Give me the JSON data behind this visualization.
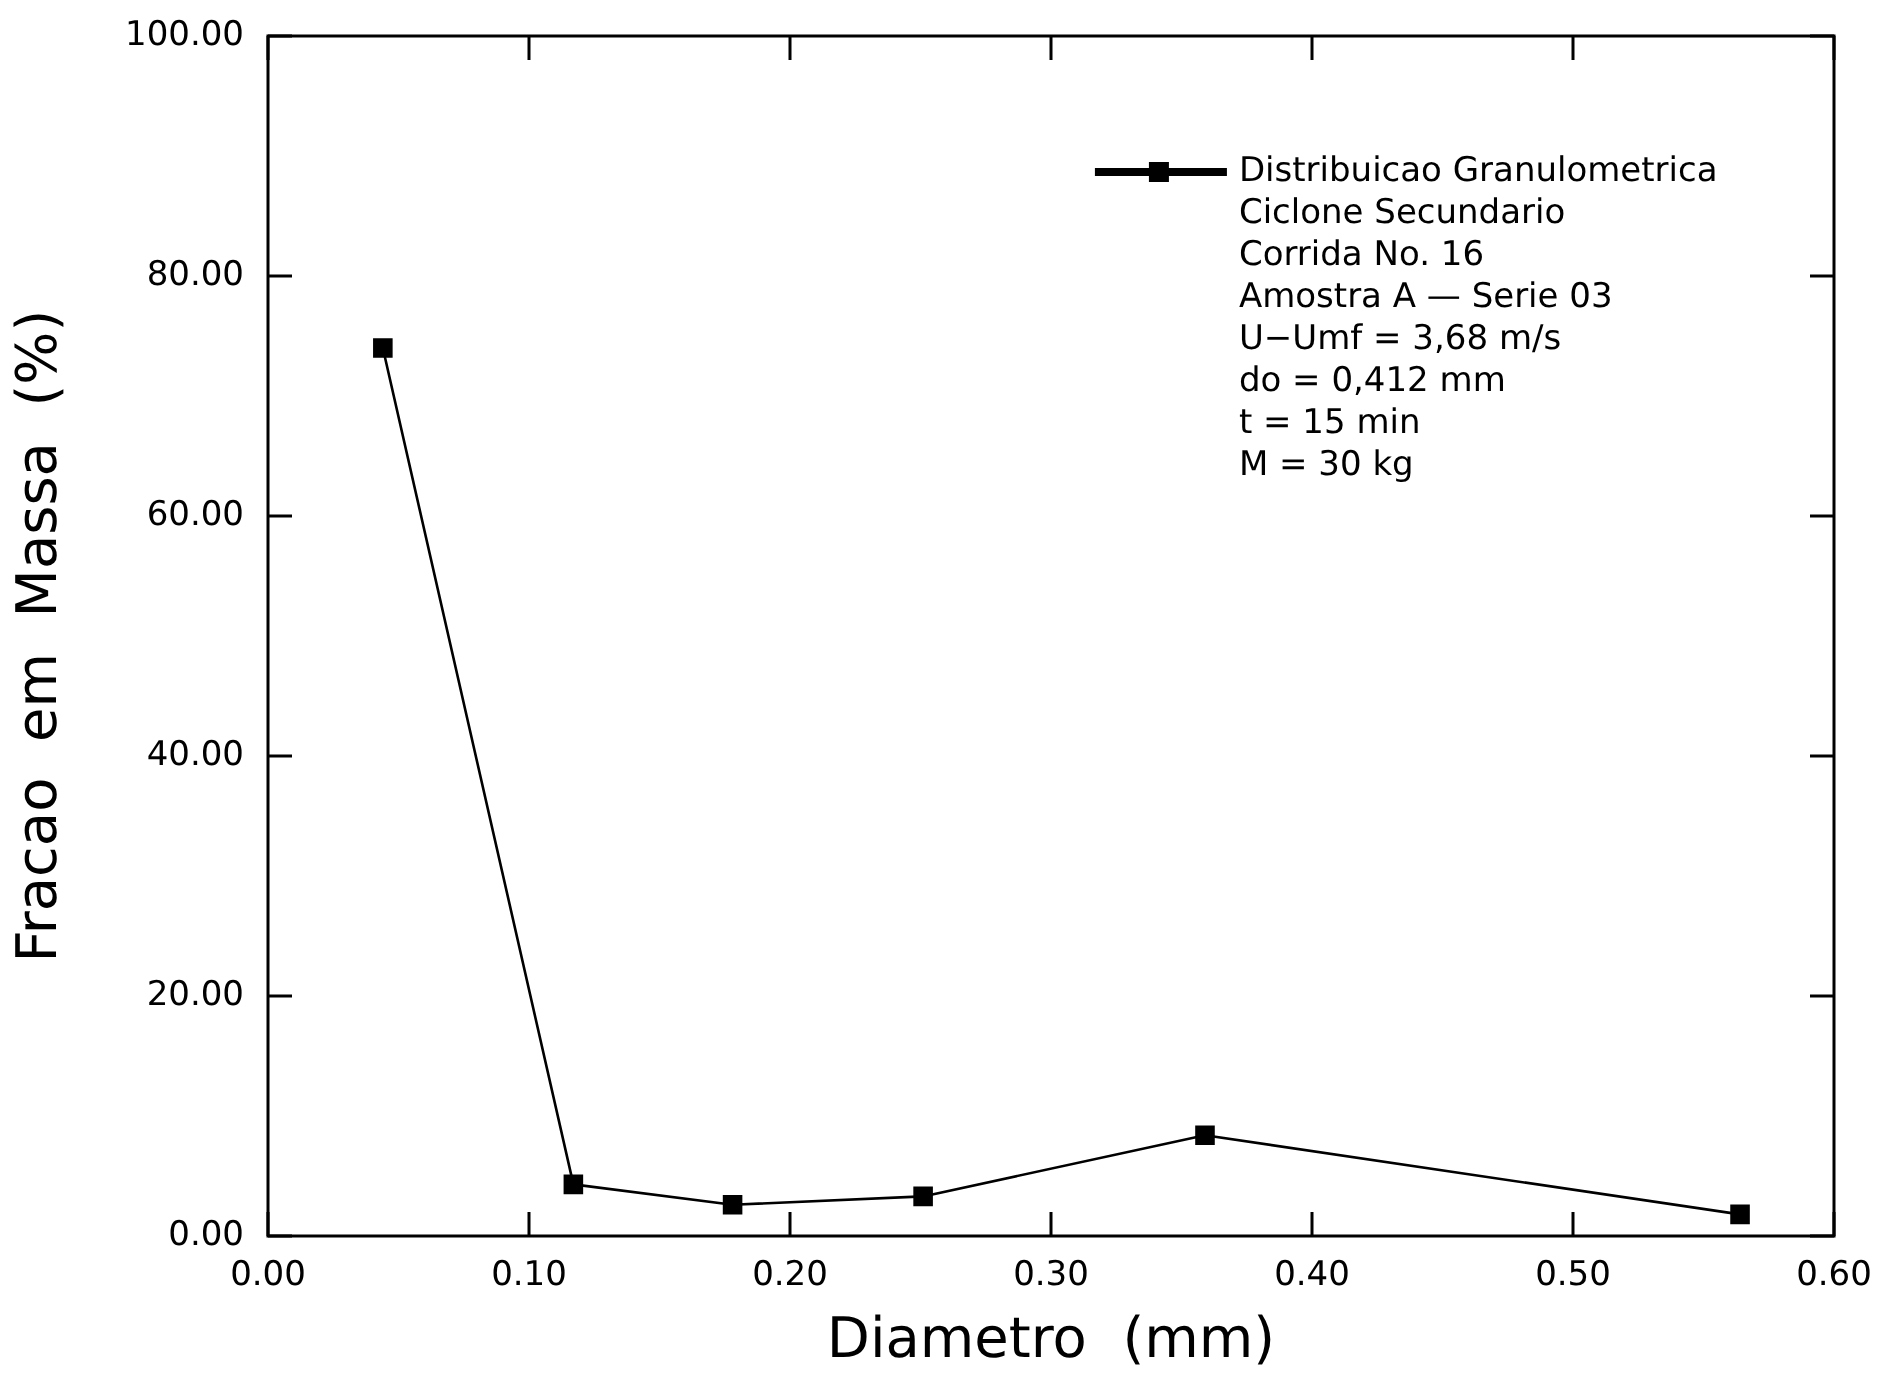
{
  "chart_data": {
    "type": "line",
    "xlabel": "Diametro  (mm)",
    "ylabel": "Fracao  em  Massa  (%)",
    "series": [
      {
        "name": "Distribuicao Granulometrica",
        "color": "#000000",
        "x": [
          0.044,
          0.117,
          0.178,
          0.251,
          0.359,
          0.564
        ],
        "values": [
          74.0,
          4.3,
          2.6,
          3.3,
          8.4,
          1.8
        ]
      }
    ],
    "xlim": [
      0,
      0.6
    ],
    "xticks": [
      {
        "value": 0,
        "label": "0.00"
      },
      {
        "value": 0.1,
        "label": "0.10"
      },
      {
        "value": 0.2,
        "label": "0.20"
      },
      {
        "value": 0.3,
        "label": "0.30"
      },
      {
        "value": 0.4,
        "label": "0.40"
      },
      {
        "value": 0.5,
        "label": "0.50"
      },
      {
        "value": 0.6,
        "label": "0.60"
      }
    ],
    "ylim": [
      0,
      100
    ],
    "yticks": [
      {
        "value": 0,
        "label": "0.00"
      },
      {
        "value": 20,
        "label": "20.00"
      },
      {
        "value": 40,
        "label": "40.00"
      },
      {
        "value": 60,
        "label": "60.00"
      },
      {
        "value": 80,
        "label": "80.00"
      },
      {
        "value": 100,
        "label": "100.00"
      }
    ],
    "grid": false,
    "legend": "top right",
    "marker": "square",
    "line_style": "solid",
    "annotations": [
      "Ciclone Secundario",
      "Corrida No. 16",
      "Amostra A — Serie 03",
      "U−Umf = 3,68 m/s",
      "do = 0,412 mm",
      "t = 15 min",
      "M = 30 kg"
    ]
  }
}
